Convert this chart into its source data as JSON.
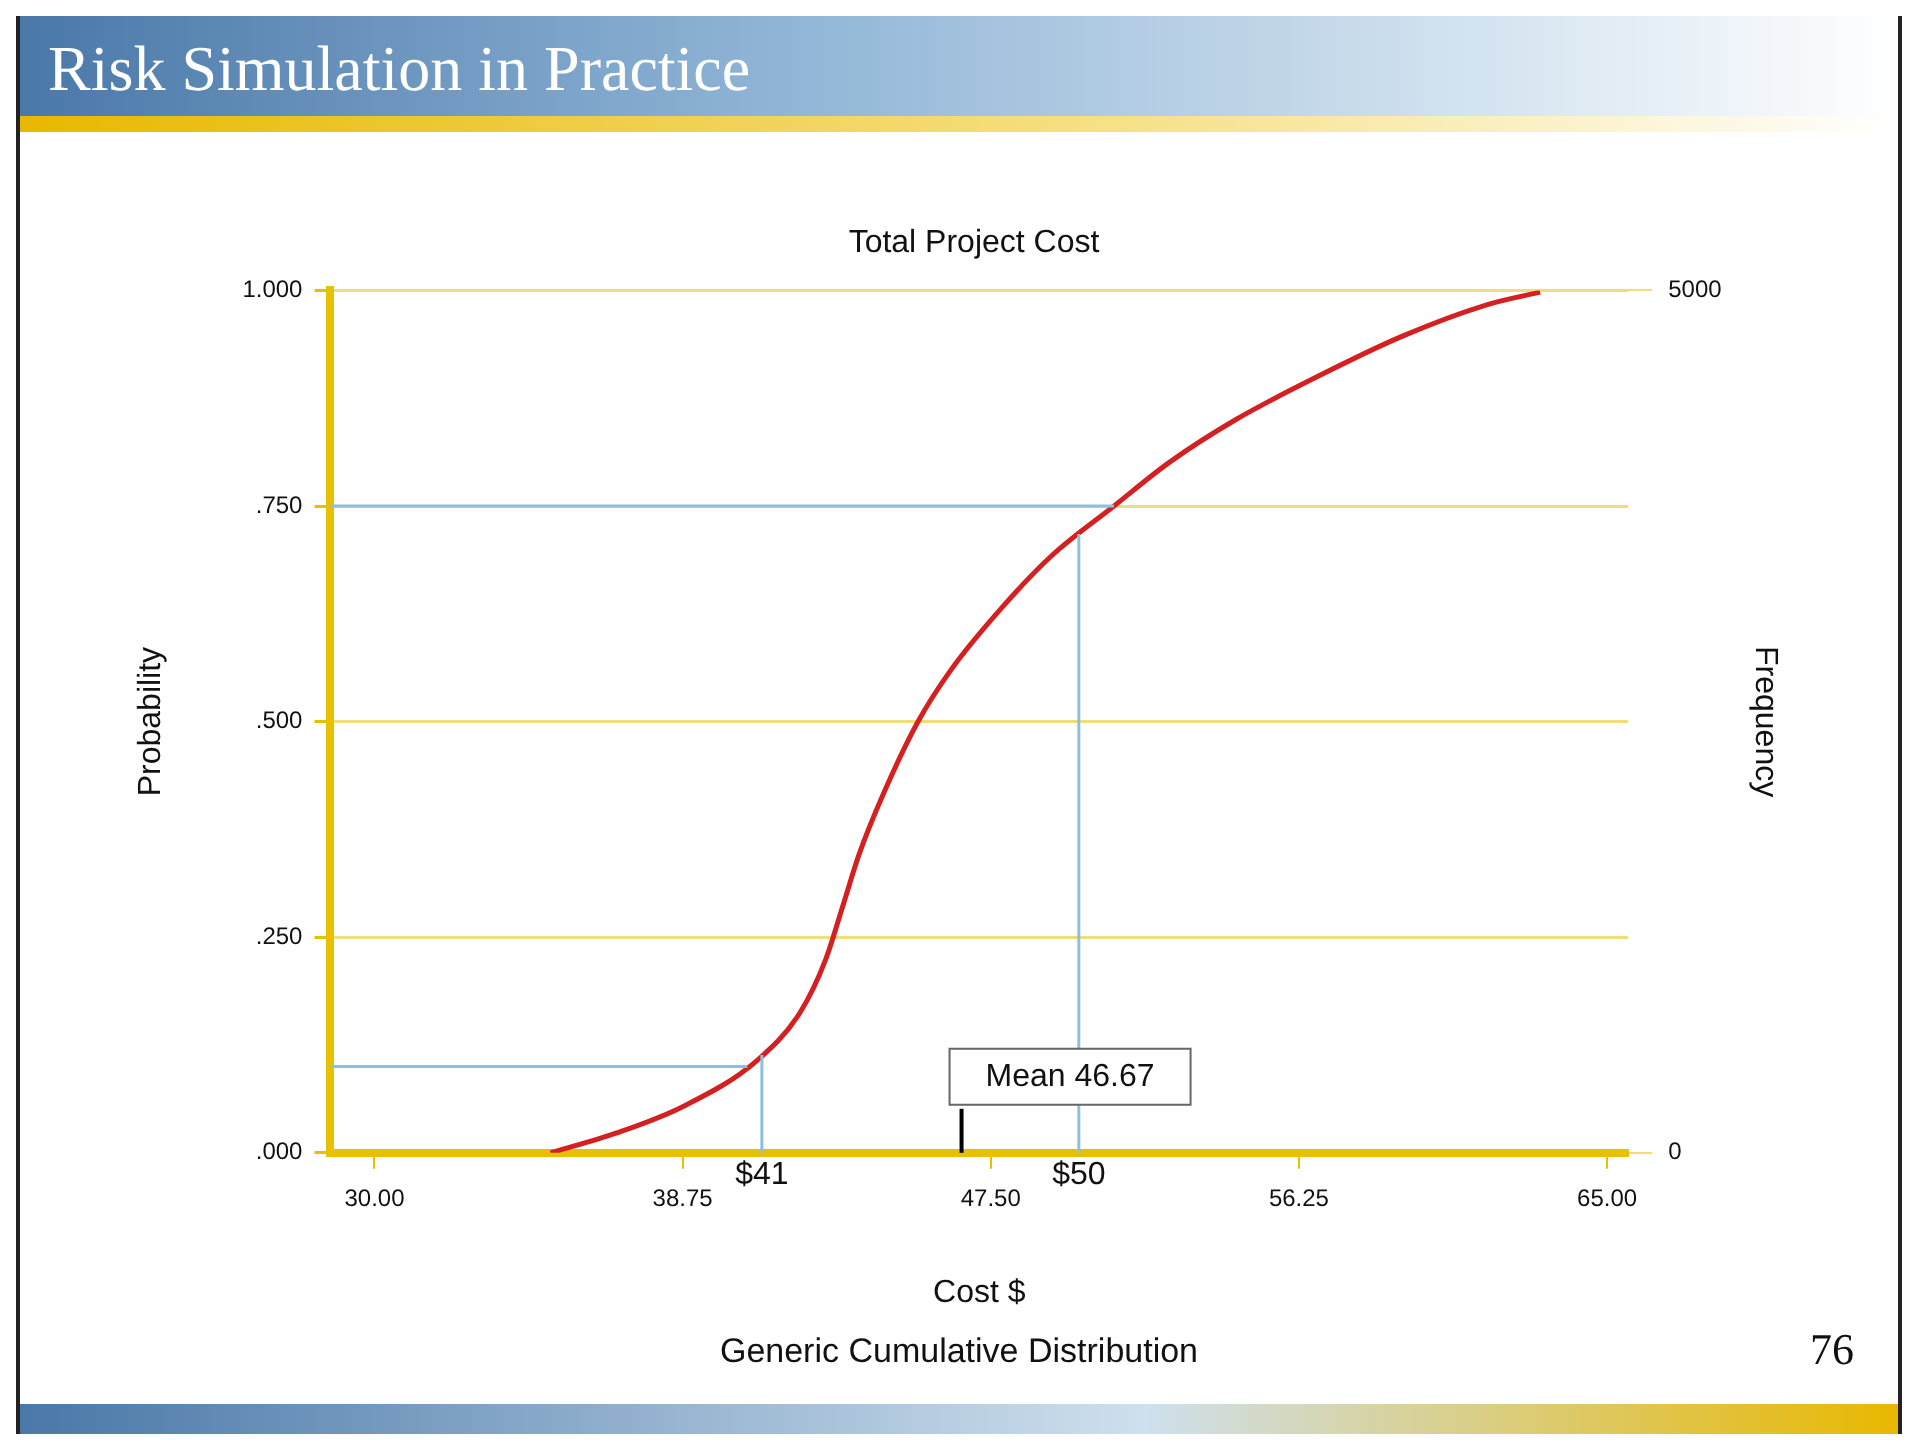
{
  "chart_data": {
    "type": "line",
    "title": "Risk Simulation in Practice",
    "subtitle": "Total Project Cost",
    "xlabel": "Cost $",
    "ylabel": "Probability",
    "y2label": "Frequency",
    "x": [
      35,
      36.88,
      38.78,
      40.86,
      42.09,
      42.81,
      43.29,
      43.76,
      44.47,
      45.42,
      46.37,
      47.79,
      49.22,
      51,
      52.55,
      54.45,
      56.82,
      59.19,
      61.56,
      63.1
    ],
    "series": [
      {
        "color": "#d42020",
        "values": [
          0,
          0.023,
          0.054,
          0.107,
          0.163,
          0.224,
          0.285,
          0.346,
          0.418,
          0.499,
          0.56,
          0.631,
          0.692,
          0.75,
          0.8,
          0.85,
          0.901,
          0.947,
          0.983,
          0.998
        ]
      }
    ],
    "xlim": [
      28.75,
      65.6
    ],
    "xticks": [
      {
        "value": 30,
        "label": "30.00"
      },
      {
        "value": 38.75,
        "label": "38.75"
      },
      {
        "value": 47.5,
        "label": "47.50"
      },
      {
        "value": 56.25,
        "label": "56.25"
      },
      {
        "value": 65,
        "label": "65.00"
      }
    ],
    "ylim": [
      0,
      1
    ],
    "yticks": [
      {
        "value": 0,
        "label": ".000"
      },
      {
        "value": 0.25,
        "label": ".250"
      },
      {
        "value": 0.5,
        "label": ".500"
      },
      {
        "value": 0.75,
        "label": ".750"
      },
      {
        "value": 1,
        "label": "1.000"
      }
    ],
    "y2lim": [
      0,
      5000
    ],
    "y2ticks": [
      0,
      5000
    ],
    "ref_lines": [
      {
        "axis": "x",
        "value": 41,
        "label": "$41",
        "color": "#8cc0e0"
      },
      {
        "axis": "x",
        "value": 50,
        "label": "$50",
        "color": "#8cc0e0"
      },
      {
        "axis": "x",
        "value": 46.67,
        "label": "Mean 46.67",
        "color": "#000000",
        "line_style": "solid"
      },
      {
        "axis": "y",
        "value": 0.75,
        "color": "#8cc0e0"
      },
      {
        "axis": "y",
        "value": 0.1,
        "color": "#8cc0e0"
      }
    ],
    "annotations": [
      "Generic Cumulative Distribution",
      "76"
    ],
    "grid": "y",
    "legend": false,
    "marker": "none",
    "line_style": "solid"
  }
}
